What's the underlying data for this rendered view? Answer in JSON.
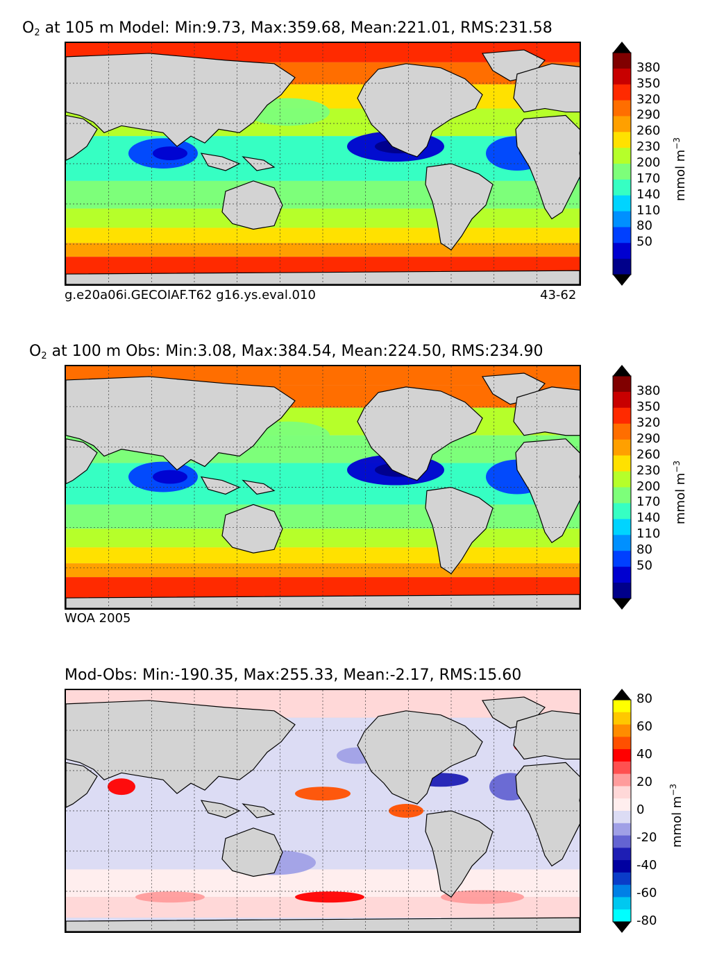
{
  "panels": [
    {
      "title_var": "O",
      "title_sub": "2",
      "title_rest": " at 105 m Model: Min:9.73, Max:359.68, Mean:221.01, RMS:231.58",
      "footer_left": "g.e20a06i.GECOIAF.T62 g16.ys.eval.010",
      "footer_right": "43-62",
      "colorbar": {
        "ticks": [
          "380",
          "350",
          "320",
          "290",
          "260",
          "230",
          "200",
          "170",
          "140",
          "110",
          "80",
          "50"
        ],
        "unit": "mmol m",
        "unit_sup": "−3",
        "colors": [
          "#800000",
          "#c80000",
          "#ff2a00",
          "#ff6e00",
          "#ffa000",
          "#ffe100",
          "#b6ff2a",
          "#7dff7a",
          "#36ffc3",
          "#00d4ff",
          "#0090ff",
          "#0040ff",
          "#0000d0",
          "#00008a"
        ],
        "over_color": "#000000",
        "under_color": "#000000"
      }
    },
    {
      "title_var": "O",
      "title_sub": "2",
      "title_rest": " at 100 m Obs: Min:3.08, Max:384.54, Mean:224.50, RMS:234.90",
      "footer_left": "WOA 2005",
      "colorbar": {
        "ticks": [
          "380",
          "350",
          "320",
          "290",
          "260",
          "230",
          "200",
          "170",
          "140",
          "110",
          "80",
          "50"
        ],
        "unit": "mmol m",
        "unit_sup": "−3",
        "colors": [
          "#800000",
          "#c80000",
          "#ff2a00",
          "#ff6e00",
          "#ffa000",
          "#ffe100",
          "#b6ff2a",
          "#7dff7a",
          "#36ffc3",
          "#00d4ff",
          "#0090ff",
          "#0040ff",
          "#0000d0",
          "#00008a"
        ],
        "over_color": "#000000",
        "under_color": "#000000"
      }
    },
    {
      "title_rest": "Mod-Obs: Min:-190.35, Max:255.33, Mean:-2.17, RMS:15.60",
      "colorbar": {
        "ticks": [
          "80",
          "60",
          "40",
          "20",
          "0",
          "-20",
          "-40",
          "-60",
          "-80"
        ],
        "unit": "mmol m",
        "unit_sup": "−3",
        "colors": [
          "#ffff00",
          "#ffc800",
          "#ff8c00",
          "#ff5000",
          "#ff0000",
          "#ff5050",
          "#ff9c9c",
          "#ffd8d8",
          "#ffeeee",
          "#dcdcf4",
          "#a0a0e6",
          "#6464d2",
          "#1e1eb4",
          "#0000a0",
          "#0a3cc8",
          "#0080e6",
          "#00c8f0",
          "#00ffff"
        ],
        "over_color": "#000000",
        "under_color": "#000000"
      }
    }
  ]
}
